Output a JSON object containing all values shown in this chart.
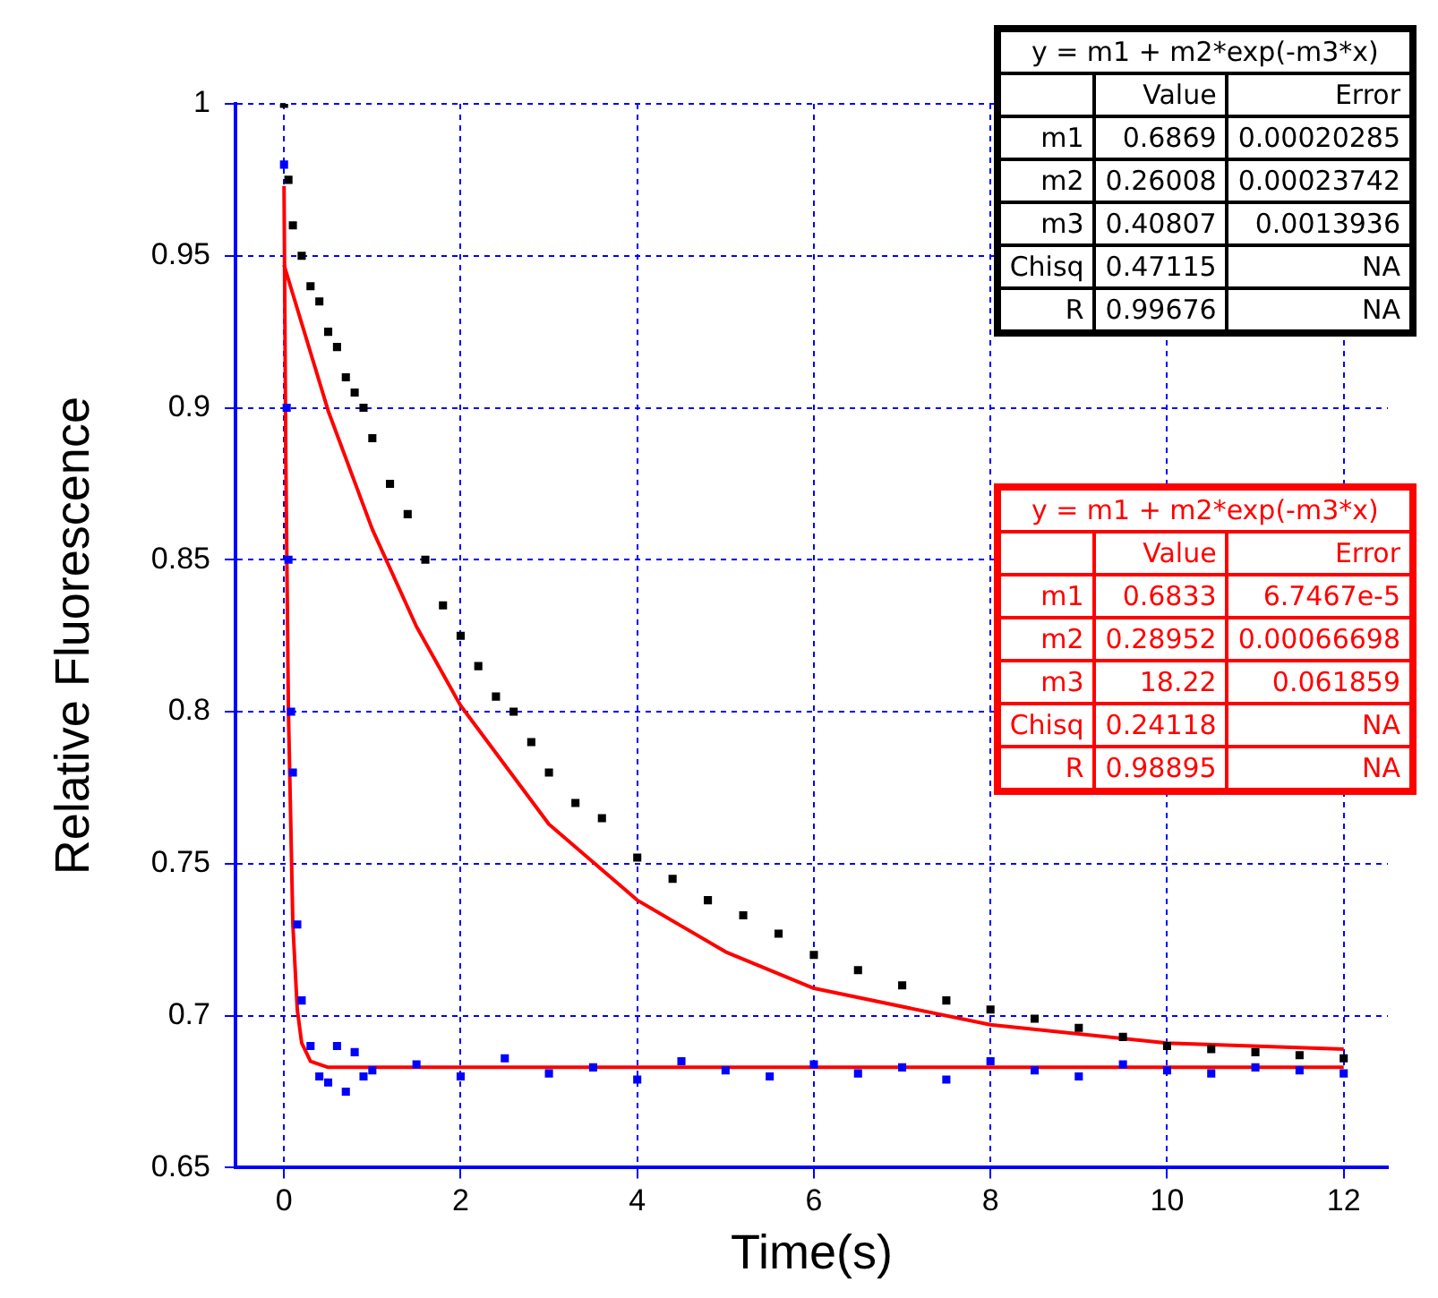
{
  "chart_data": {
    "type": "scatter",
    "xlabel": "Time(s)",
    "ylabel": "Relative Fluorescence",
    "xlim": [
      -0.55,
      12.5
    ],
    "xticks": [
      0,
      2,
      4,
      6,
      8,
      10,
      12
    ],
    "ylim": [
      0.65,
      1
    ],
    "yticks": [
      0.65,
      0.7,
      0.75,
      0.8,
      0.85,
      0.9,
      0.95,
      1
    ],
    "grid": true,
    "legend": false,
    "series": [
      {
        "marker": "square",
        "color": "#000000",
        "x": [
          0,
          0.05,
          0.1,
          0.2,
          0.3,
          0.4,
          0.5,
          0.6,
          0.7,
          0.8,
          0.9,
          1,
          1.2,
          1.4,
          1.6,
          1.8,
          2,
          2.2,
          2.4,
          2.6,
          2.8,
          3,
          3.3,
          3.6,
          4,
          4.4,
          4.8,
          5.2,
          5.6,
          6,
          6.5,
          7,
          7.5,
          8,
          8.5,
          9,
          9.5,
          10,
          10.5,
          11,
          11.5,
          12
        ],
        "values": [
          1,
          0.975,
          0.96,
          0.95,
          0.94,
          0.935,
          0.925,
          0.92,
          0.91,
          0.905,
          0.9,
          0.89,
          0.875,
          0.865,
          0.85,
          0.835,
          0.825,
          0.815,
          0.805,
          0.8,
          0.79,
          0.78,
          0.77,
          0.765,
          0.752,
          0.745,
          0.738,
          0.733,
          0.727,
          0.72,
          0.715,
          0.71,
          0.705,
          0.702,
          0.699,
          0.696,
          0.693,
          0.69,
          0.689,
          0.688,
          0.687,
          0.686
        ]
      },
      {
        "marker": "square",
        "color": "#0000ff",
        "x": [
          0,
          0.03,
          0.05,
          0.08,
          0.1,
          0.15,
          0.2,
          0.3,
          0.4,
          0.5,
          0.6,
          0.7,
          0.8,
          0.9,
          1,
          1.5,
          2,
          2.5,
          3,
          3.5,
          4,
          4.5,
          5,
          5.5,
          6,
          6.5,
          7,
          7.5,
          8,
          8.5,
          9,
          9.5,
          10,
          10.5,
          11,
          11.5,
          12
        ],
        "values": [
          0.98,
          0.9,
          0.85,
          0.8,
          0.78,
          0.73,
          0.705,
          0.69,
          0.68,
          0.678,
          0.69,
          0.675,
          0.688,
          0.68,
          0.682,
          0.684,
          0.68,
          0.686,
          0.681,
          0.683,
          0.679,
          0.685,
          0.682,
          0.68,
          0.684,
          0.681,
          0.683,
          0.679,
          0.685,
          0.682,
          0.68,
          0.684,
          0.682,
          0.681,
          0.683,
          0.682,
          0.681
        ]
      },
      {
        "type": "line",
        "marker": "none",
        "color": "#ff0000",
        "x": [
          0,
          0.5,
          1,
          1.5,
          2,
          3,
          4,
          5,
          6,
          8,
          10,
          12
        ],
        "values": [
          0.947,
          0.899,
          0.86,
          0.828,
          0.802,
          0.763,
          0.738,
          0.721,
          0.709,
          0.697,
          0.691,
          0.689
        ]
      },
      {
        "type": "line",
        "marker": "none",
        "color": "#ff0000",
        "x": [
          0,
          0.02,
          0.05,
          0.1,
          0.15,
          0.2,
          0.3,
          0.5,
          12
        ],
        "values": [
          0.973,
          0.884,
          0.8,
          0.73,
          0.702,
          0.691,
          0.685,
          0.683,
          0.683
        ]
      }
    ],
    "annotations": [
      "y = m1 + m2*exp(-m3*x)",
      "Value",
      "Error",
      "m1",
      "0.6869",
      "0.00020285",
      "m2",
      "0.26008",
      "0.00023742",
      "m3",
      "0.40807",
      "0.0013936",
      "Chisq",
      "0.47115",
      "NA",
      "R",
      "0.99676",
      "NA",
      "y = m1 + m2*exp(-m3*x)",
      "Value",
      "Error",
      "m1",
      "0.6833",
      "6.7467e-5",
      "m2",
      "0.28952",
      "0.00066698",
      "m3",
      "18.22",
      "0.061859",
      "Chisq",
      "0.24118",
      "NA",
      "R",
      "0.98895",
      "NA"
    ]
  }
}
